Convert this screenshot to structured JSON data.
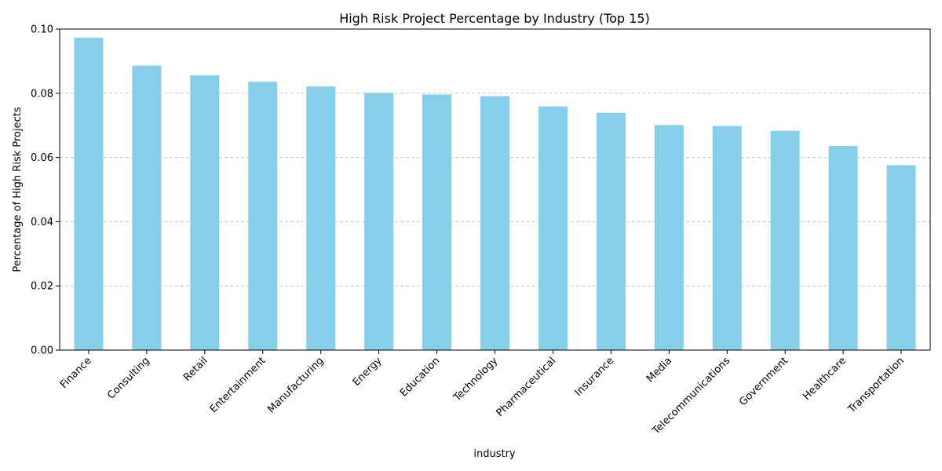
{
  "chart_data": {
    "type": "bar",
    "title": "High Risk Project Percentage by Industry (Top 15)",
    "xlabel": "industry",
    "ylabel": "Percentage of High Risk Projects",
    "categories": [
      "Finance",
      "Consulting",
      "Retail",
      "Entertainment",
      "Manufacturing",
      "Energy",
      "Education",
      "Technology",
      "Pharmaceutical",
      "Insurance",
      "Media",
      "Telecommunications",
      "Government",
      "Healthcare",
      "Transportation"
    ],
    "values": [
      0.0973,
      0.0886,
      0.0856,
      0.0836,
      0.0821,
      0.0801,
      0.0796,
      0.0791,
      0.0759,
      0.0739,
      0.0701,
      0.0698,
      0.0683,
      0.0636,
      0.0576
    ],
    "ylim": [
      0,
      0.1
    ],
    "yticks": [
      "0.00",
      "0.02",
      "0.04",
      "0.06",
      "0.08",
      "0.10"
    ],
    "ytick_values": [
      0,
      0.02,
      0.04,
      0.06,
      0.08,
      0.1
    ],
    "grid": "y-dashed",
    "bar_color": "#87ceeb",
    "grid_color": "#c8c8c8"
  }
}
